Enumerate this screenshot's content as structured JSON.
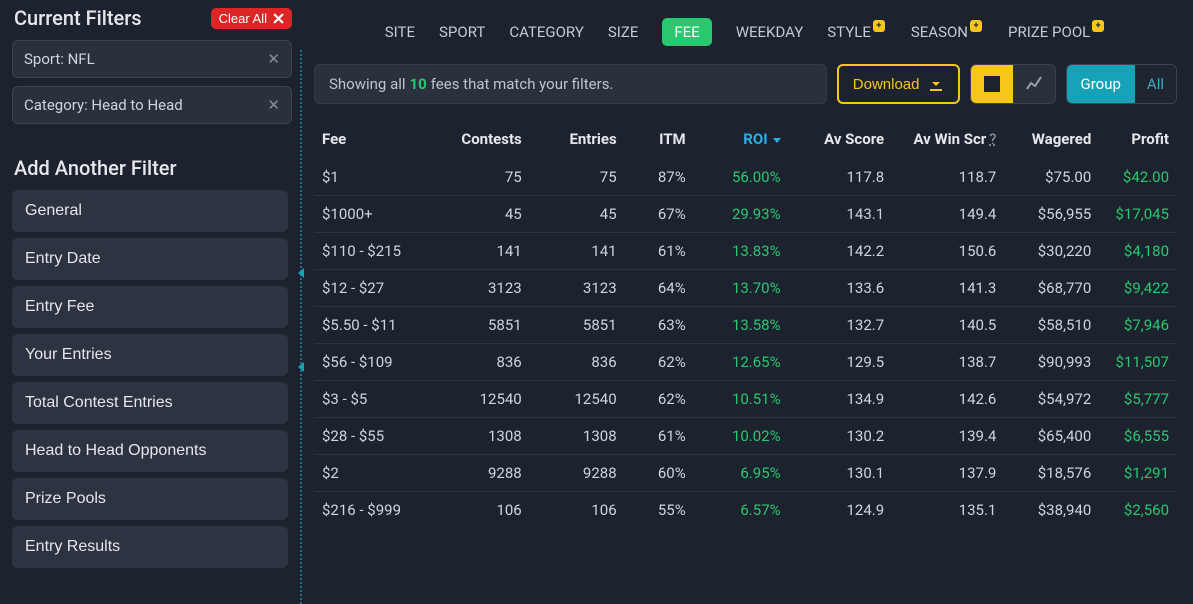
{
  "sidebar": {
    "title": "Current Filters",
    "clear_label": "Clear All",
    "chips": [
      {
        "label": "Sport: NFL"
      },
      {
        "label": "Category: Head to Head"
      }
    ],
    "add_title": "Add Another Filter",
    "filter_buttons": [
      "General",
      "Entry Date",
      "Entry Fee",
      "Your Entries",
      "Total Contest Entries",
      "Head to Head Opponents",
      "Prize Pools",
      "Entry Results"
    ]
  },
  "topnav": {
    "items": [
      "SITE",
      "SPORT",
      "CATEGORY",
      "SIZE",
      "FEE",
      "WEEKDAY",
      "STYLE",
      "SEASON",
      "PRIZE POOL"
    ],
    "active": "FEE",
    "badge_on": [
      "STYLE",
      "SEASON",
      "PRIZE POOL"
    ]
  },
  "toolbar": {
    "status_prefix": "Showing all",
    "status_count": "10",
    "status_suffix": "fees that match your filters.",
    "download_label": "Download",
    "group_label": "Group",
    "all_label": "All"
  },
  "table": {
    "columns": [
      "Fee",
      "Contests",
      "Entries",
      "ITM",
      "ROI",
      "Av Score",
      "Av Win Scr",
      "Wagered",
      "Profit"
    ],
    "sort_col": "ROI",
    "help_col": "Av Win Scr",
    "col_widths": [
      "14%",
      "11%",
      "11%",
      "8%",
      "11%",
      "12%",
      "13%",
      "11%",
      "9%"
    ],
    "rows": [
      [
        "$1",
        "75",
        "75",
        "87%",
        "56.00%",
        "117.8",
        "118.7",
        "$75.00",
        "$42.00"
      ],
      [
        "$1000+",
        "45",
        "45",
        "67%",
        "29.93%",
        "143.1",
        "149.4",
        "$56,955",
        "$17,045"
      ],
      [
        "$110 - $215",
        "141",
        "141",
        "61%",
        "13.83%",
        "142.2",
        "150.6",
        "$30,220",
        "$4,180"
      ],
      [
        "$12 - $27",
        "3123",
        "3123",
        "64%",
        "13.70%",
        "133.6",
        "141.3",
        "$68,770",
        "$9,422"
      ],
      [
        "$5.50 - $11",
        "5851",
        "5851",
        "63%",
        "13.58%",
        "132.7",
        "140.5",
        "$58,510",
        "$7,946"
      ],
      [
        "$56 - $109",
        "836",
        "836",
        "62%",
        "12.65%",
        "129.5",
        "138.7",
        "$90,993",
        "$11,507"
      ],
      [
        "$3 - $5",
        "12540",
        "12540",
        "62%",
        "10.51%",
        "134.9",
        "142.6",
        "$54,972",
        "$5,777"
      ],
      [
        "$28 - $55",
        "1308",
        "1308",
        "61%",
        "10.02%",
        "130.2",
        "139.4",
        "$65,400",
        "$6,555"
      ],
      [
        "$2",
        "9288",
        "9288",
        "60%",
        "6.95%",
        "130.1",
        "137.9",
        "$18,576",
        "$1,291"
      ],
      [
        "$216 - $999",
        "106",
        "106",
        "55%",
        "6.57%",
        "124.9",
        "135.1",
        "$38,940",
        "$2,560"
      ]
    ]
  }
}
